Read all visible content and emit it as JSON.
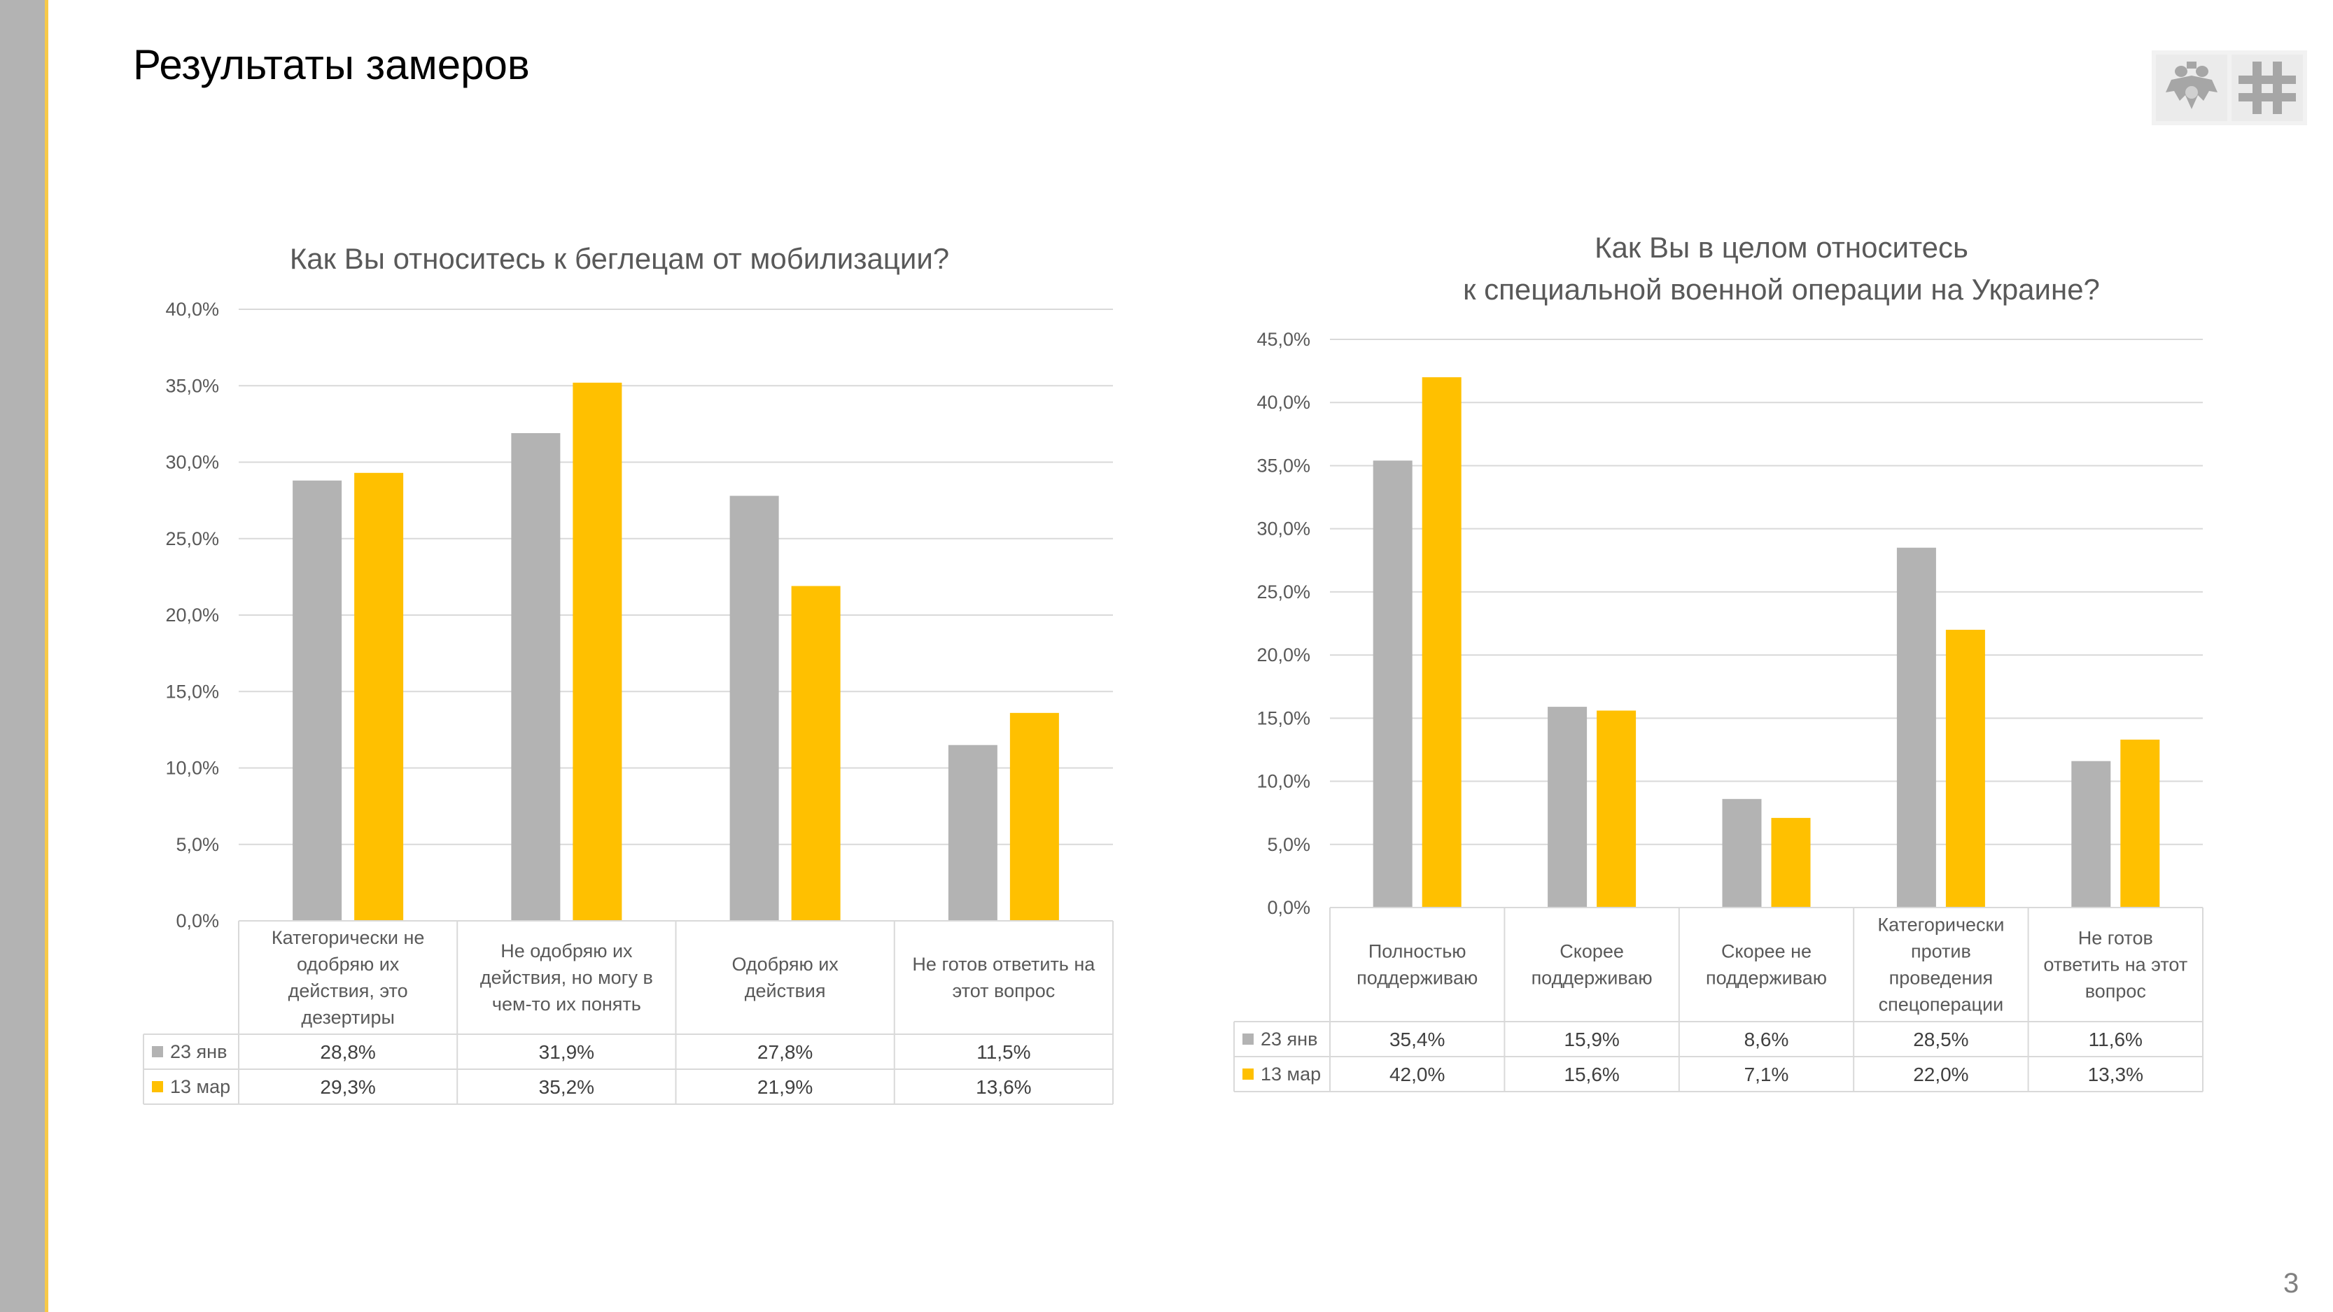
{
  "slide": {
    "title": "Результаты замеров",
    "page_number": "3"
  },
  "colors": {
    "series_1": "#b3b3b3",
    "series_2": "#ffc000",
    "sidebar": "#b3b3b3",
    "accent": "#f7c948"
  },
  "logos": [
    "eagle-emblem-icon",
    "cross-grid-icon"
  ],
  "chart_data": [
    {
      "type": "bar",
      "title": [
        "Как Вы относитесь к беглецам от мобилизации?"
      ],
      "categories": [
        [
          "Категорически не",
          "одобряю их",
          "действия, это",
          "дезертиры"
        ],
        [
          "Не одобряю их",
          "действия, но могу в",
          "чем-то их понять"
        ],
        [
          "Одобряю их",
          "действия"
        ],
        [
          "Не готов ответить на",
          "этот вопрос"
        ]
      ],
      "series": [
        {
          "name": "23 янв",
          "values": [
            28.8,
            31.9,
            27.8,
            11.5
          ],
          "labels": [
            "28,8%",
            "31,9%",
            "27,8%",
            "11,5%"
          ]
        },
        {
          "name": "13 мар",
          "values": [
            29.3,
            35.2,
            21.9,
            13.6
          ],
          "labels": [
            "29,3%",
            "35,2%",
            "21,9%",
            "13,6%"
          ]
        }
      ],
      "ylim": [
        0,
        40
      ],
      "yticks": [
        "0,0%",
        "5,0%",
        "10,0%",
        "15,0%",
        "20,0%",
        "25,0%",
        "30,0%",
        "35,0%",
        "40,0%"
      ],
      "grid": true,
      "legend": "data-table"
    },
    {
      "type": "bar",
      "title": [
        "Как Вы в целом относитесь",
        "к специальной военной операции на Украине?"
      ],
      "categories": [
        [
          "Полностью",
          "поддерживаю"
        ],
        [
          "Скорее",
          "поддерживаю"
        ],
        [
          "Скорее не",
          "поддерживаю"
        ],
        [
          "Категорически",
          "против",
          "проведения",
          "спецоперации"
        ],
        [
          "Не готов",
          "ответить на этот",
          "вопрос"
        ]
      ],
      "series": [
        {
          "name": "23 янв",
          "values": [
            35.4,
            15.9,
            8.6,
            28.5,
            11.6
          ],
          "labels": [
            "35,4%",
            "15,9%",
            "8,6%",
            "28,5%",
            "11,6%"
          ]
        },
        {
          "name": "13 мар",
          "values": [
            42.0,
            15.6,
            7.1,
            22.0,
            13.3
          ],
          "labels": [
            "42,0%",
            "15,6%",
            "7,1%",
            "22,0%",
            "13,3%"
          ]
        }
      ],
      "ylim": [
        0,
        45
      ],
      "yticks": [
        "0,0%",
        "5,0%",
        "10,0%",
        "15,0%",
        "20,0%",
        "25,0%",
        "30,0%",
        "35,0%",
        "40,0%",
        "45,0%"
      ],
      "grid": true,
      "legend": "data-table"
    }
  ]
}
